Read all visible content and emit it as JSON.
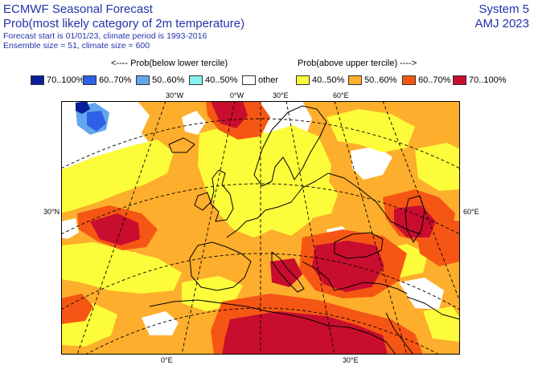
{
  "header": {
    "title": "ECMWF Seasonal Forecast",
    "subtitle": "Prob(most likely category of 2m temperature)",
    "info_line1": "Forecast start is 01/01/23, climate period is 1993-2016",
    "info_line2": "Ensemble size = 51, climate size = 600",
    "system": "System 5",
    "season": "AMJ 2023"
  },
  "legend": {
    "below_heading": "<---- Prob(below lower tercile)",
    "above_heading": "Prob(above upper tercile) ---->",
    "items": [
      {
        "label": "70..100%",
        "color": "#0a1e9c"
      },
      {
        "label": "60..70%",
        "color": "#2f5fe6"
      },
      {
        "label": "50..60%",
        "color": "#62a6ee"
      },
      {
        "label": "40..50%",
        "color": "#86f1f1"
      },
      {
        "label": "other",
        "color": "#ffffff"
      },
      {
        "label": "40..50%",
        "color": "#fdfc3a"
      },
      {
        "label": "50..60%",
        "color": "#fdae2c"
      },
      {
        "label": "60..70%",
        "color": "#f55614"
      },
      {
        "label": "70..100%",
        "color": "#c80d2e"
      }
    ]
  },
  "map": {
    "top_labels": [
      "30°W",
      "0°W",
      "30°E",
      "60°E"
    ],
    "left_label": "30°N",
    "right_label": "60°E",
    "bottom_labels": [
      "0°E",
      "30°E"
    ]
  }
}
